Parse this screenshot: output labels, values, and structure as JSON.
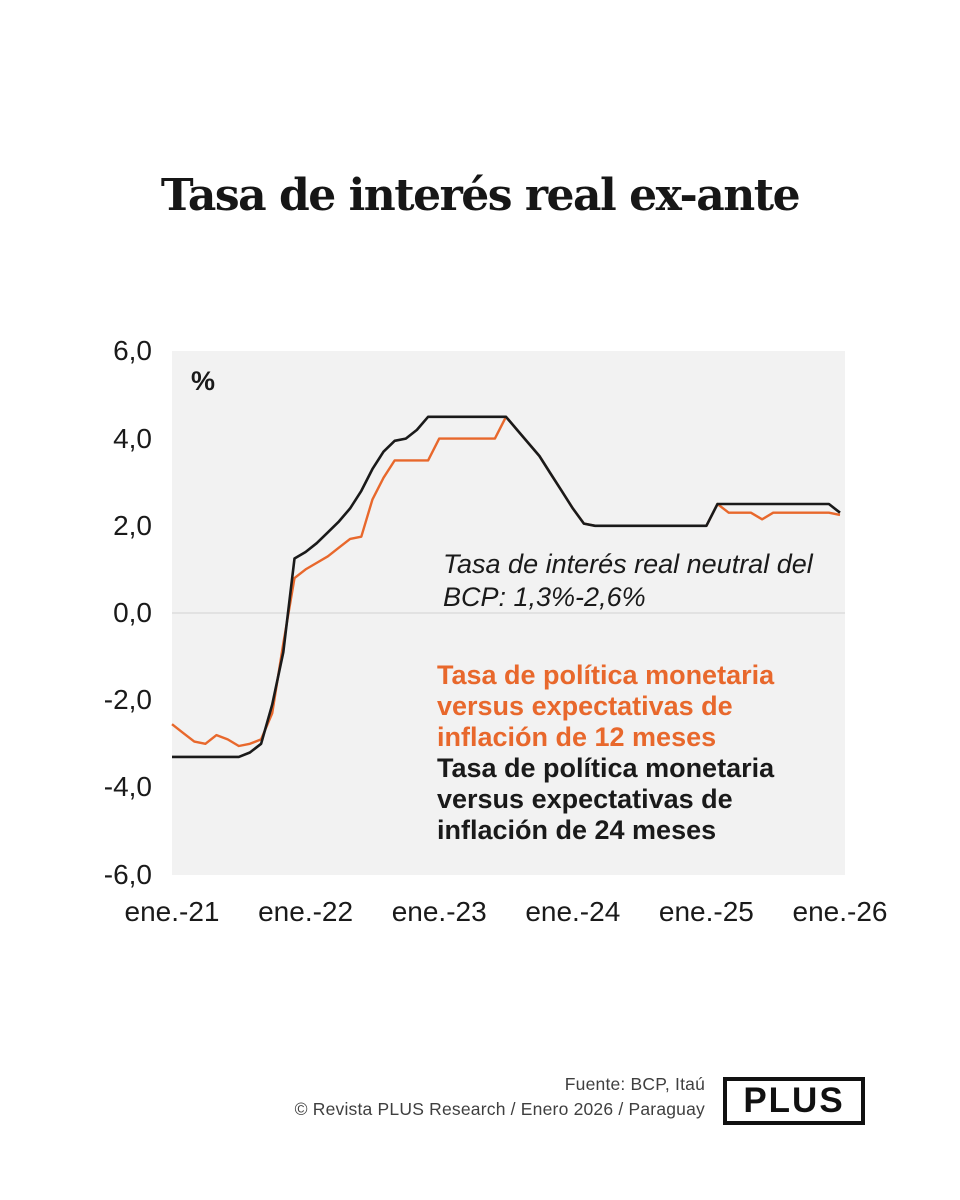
{
  "header": {
    "title": "Tasa de interés real ex-ante"
  },
  "annotation": {
    "line1": "Tasa de interés real neutral del",
    "line2": "BCP: 1,3%-2,6%"
  },
  "legend": {
    "orange_text": "Tasa de política monetaria\nversus expectativas de\ninflación de 12 meses",
    "black_text": "Tasa de política monetaria\nversus expectativas de\ninflación de 24 meses"
  },
  "footer": {
    "source_line": "Fuente: BCP, Itaú",
    "credit_line": "© Revista PLUS Research / Enero 2026 / Paraguay",
    "logo_text": "PLUS"
  },
  "theme": {
    "orange": "#E8682C",
    "black": "#1A1A1A",
    "plot_background": "#F2F2F2",
    "zero_gridline": "#DCDCDC"
  },
  "chart_data": {
    "type": "line",
    "title": "Tasa de interés real ex-ante",
    "unit_label": "%",
    "xlabel": "",
    "ylabel": "%",
    "frequency": "monthly",
    "x_range": [
      "ene.-21",
      "ene.-26"
    ],
    "x_tick_labels": [
      "ene.-21",
      "ene.-22",
      "ene.-23",
      "ene.-24",
      "ene.-25",
      "ene.-26"
    ],
    "y_ticks": [
      6.0,
      4.0,
      2.0,
      0.0,
      -2.0,
      -4.0,
      -6.0
    ],
    "y_tick_labels": [
      "6,0",
      "4,0",
      "2,0",
      "0,0",
      "-2,0",
      "-4,0",
      "-6,0"
    ],
    "ylim": [
      -6.0,
      6.0
    ],
    "grid": "zero-line-only",
    "legend_position": "inside-right-as-text",
    "annotation": "Tasa de interés real neutral del BCP: 1,3%-2,6%",
    "series": [
      {
        "name": "Tasa de política monetaria versus expectativas de inflación de 12 meses",
        "color": "#E8682C",
        "values": [
          -2.55,
          -2.75,
          -2.95,
          -3.0,
          -2.8,
          -2.9,
          -3.05,
          -3.0,
          -2.9,
          -2.3,
          -0.7,
          0.8,
          1.0,
          1.15,
          1.3,
          1.5,
          1.7,
          1.75,
          2.6,
          3.1,
          3.5,
          3.5,
          3.5,
          3.5,
          4.0,
          4.0,
          4.0,
          4.0,
          4.0,
          4.0,
          4.5,
          4.2,
          3.9,
          3.6,
          3.2,
          2.8,
          2.4,
          2.05,
          2.0,
          2.0,
          2.0,
          2.0,
          2.0,
          2.0,
          2.0,
          2.0,
          2.0,
          2.0,
          2.0,
          2.5,
          2.3,
          2.3,
          2.3,
          2.15,
          2.3,
          2.3,
          2.3,
          2.3,
          2.3,
          2.3,
          2.25
        ]
      },
      {
        "name": "Tasa de política monetaria versus expectativas de inflación de 24 meses",
        "color": "#1A1A1A",
        "values": [
          -3.3,
          -3.3,
          -3.3,
          -3.3,
          -3.3,
          -3.3,
          -3.3,
          -3.2,
          -3.0,
          -2.1,
          -0.9,
          1.25,
          1.4,
          1.6,
          1.85,
          2.1,
          2.4,
          2.8,
          3.3,
          3.7,
          3.95,
          4.0,
          4.2,
          4.5,
          4.5,
          4.5,
          4.5,
          4.5,
          4.5,
          4.5,
          4.5,
          4.2,
          3.9,
          3.6,
          3.2,
          2.8,
          2.4,
          2.05,
          2.0,
          2.0,
          2.0,
          2.0,
          2.0,
          2.0,
          2.0,
          2.0,
          2.0,
          2.0,
          2.0,
          2.5,
          2.5,
          2.5,
          2.5,
          2.5,
          2.5,
          2.5,
          2.5,
          2.5,
          2.5,
          2.5,
          2.3
        ]
      }
    ]
  }
}
